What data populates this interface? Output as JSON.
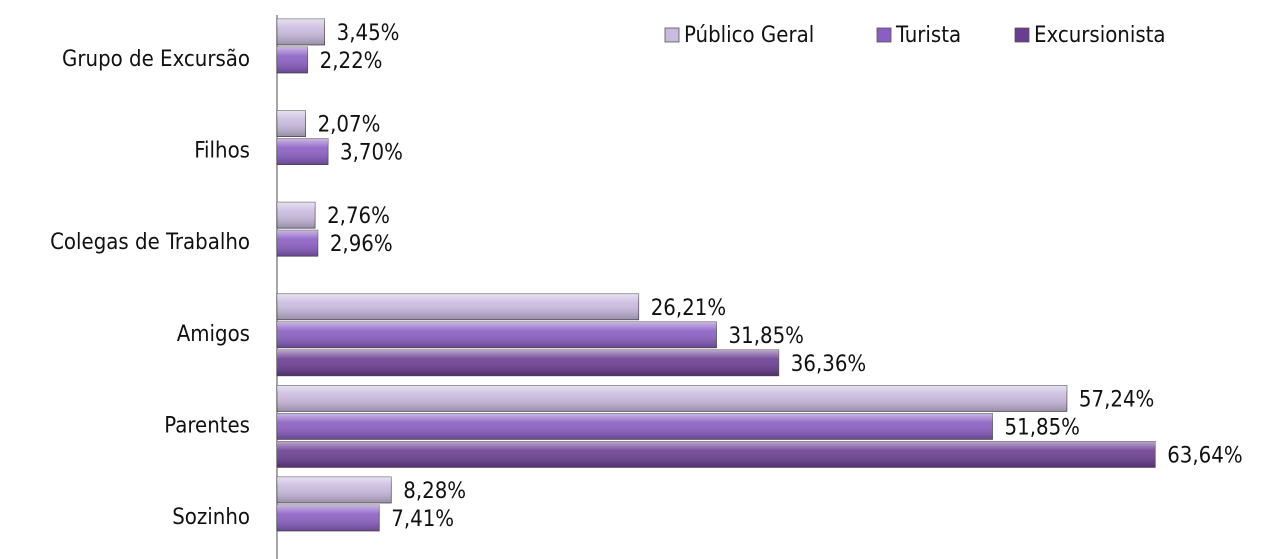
{
  "chart_data": {
    "type": "hbar",
    "categories": [
      "Grupo de Excursão",
      "Filhos",
      "Colegas de Trabalho",
      "Amigos",
      "Parentes",
      "Sozinho"
    ],
    "series": [
      {
        "name": "Público Geral",
        "color": "#c9badf",
        "values": [
          3.45,
          2.07,
          2.76,
          26.21,
          57.24,
          8.28
        ],
        "value_labels": [
          "3,45%",
          "2,07%",
          "2,76%",
          "26,21%",
          "57,24%",
          "8,28%"
        ]
      },
      {
        "name": "Turista",
        "color": "#8b5ec4",
        "values": [
          2.22,
          3.7,
          2.96,
          31.85,
          51.85,
          7.41
        ],
        "value_labels": [
          "2,22%",
          "3,70%",
          "2,96%",
          "31,85%",
          "51,85%",
          "7,41%"
        ]
      },
      {
        "name": "Excursionista",
        "color": "#6b3d92",
        "values": [
          null,
          null,
          null,
          36.36,
          63.64,
          null
        ],
        "value_labels": [
          null,
          null,
          null,
          "36,36%",
          "63,64%",
          null
        ]
      }
    ],
    "xlim": [
      0,
      70
    ],
    "legend": "top-right"
  }
}
